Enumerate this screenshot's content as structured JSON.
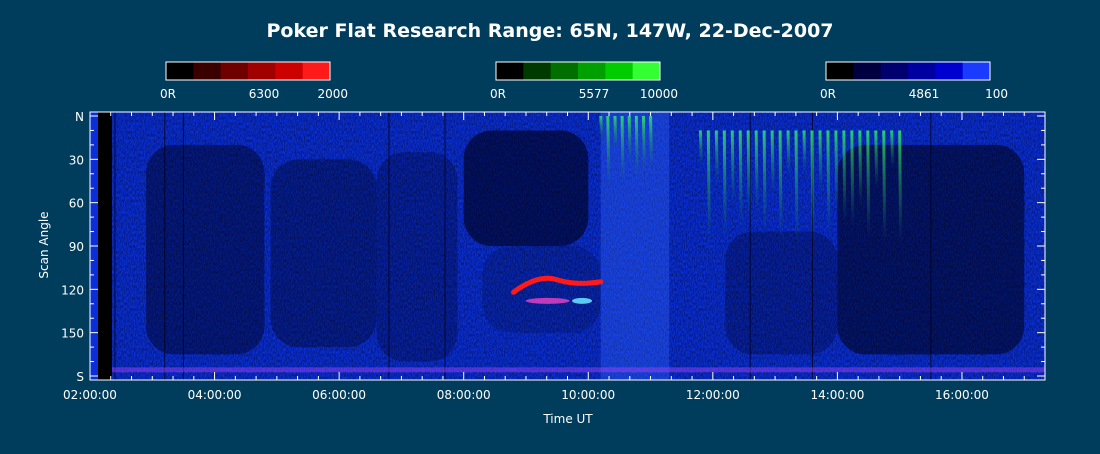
{
  "colors": {
    "background": "#003d5c",
    "plot_bg": "#0a2fd8",
    "red_scale": [
      "#000000",
      "#3a0000",
      "#6e0000",
      "#a00000",
      "#cc0000",
      "#ff1a1a"
    ],
    "green_scale": [
      "#000000",
      "#003a00",
      "#006f00",
      "#00a000",
      "#00cc00",
      "#33ff33"
    ],
    "blue_scale": [
      "#000000",
      "#000040",
      "#00006e",
      "#0000a0",
      "#0000d0",
      "#1a3aff"
    ]
  },
  "chart_data": {
    "type": "heatmap",
    "title": "Poker Flat Research Range: 65N, 147W, 22-Dec-2007",
    "xlabel": "Time UT",
    "ylabel": "Scan Angle",
    "xlim": [
      "02:00:00",
      "17:20:00"
    ],
    "ylim": [
      0,
      180
    ],
    "x_tick_labels": [
      "02:00:00",
      "04:00:00",
      "06:00:00",
      "08:00:00",
      "10:00:00",
      "12:00:00",
      "14:00:00",
      "16:00:00"
    ],
    "x_tick_hours": [
      2,
      4,
      6,
      8,
      10,
      12,
      14,
      16
    ],
    "y_tick_labels": [
      "N",
      "30",
      "60",
      "90",
      "120",
      "150",
      "S"
    ],
    "y_tick_values": [
      0,
      30,
      60,
      90,
      120,
      150,
      180
    ],
    "colorbars": [
      {
        "name": "6300",
        "min_label": "0R",
        "mid_label": "6300",
        "max_label": "2000",
        "channel": "red"
      },
      {
        "name": "5577",
        "min_label": "0R",
        "mid_label": "5577",
        "max_label": "10000",
        "channel": "green"
      },
      {
        "name": "4861",
        "min_label": "0R",
        "mid_label": "4861",
        "max_label": "100",
        "channel": "blue"
      }
    ],
    "features": [
      {
        "channel": "red",
        "label": "6300 arc",
        "time_start": 8.8,
        "time_end": 10.2,
        "angle_start": 112,
        "angle_end": 122
      },
      {
        "channel": "green",
        "label": "5577 band",
        "time_start": 10.2,
        "time_end": 11.0,
        "angle_start": 0,
        "angle_end": 50
      },
      {
        "channel": "green",
        "label": "5577 band",
        "time_start": 11.8,
        "time_end": 15.0,
        "angle_start": 10,
        "angle_end": 90
      }
    ]
  }
}
